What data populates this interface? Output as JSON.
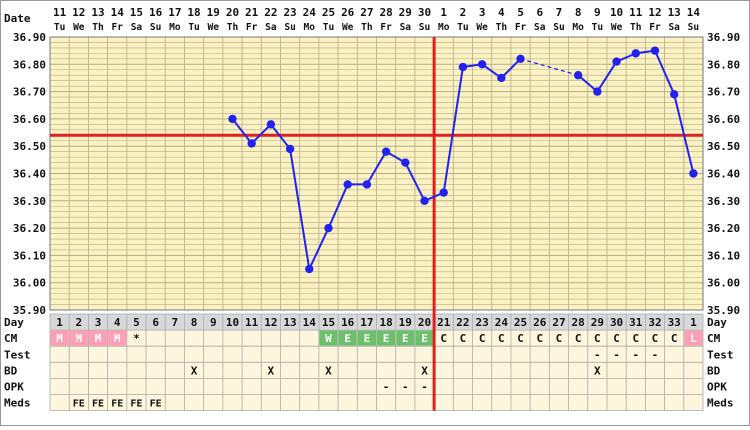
{
  "chart_data": {
    "type": "line",
    "title": "",
    "row_labels": {
      "date": "Date",
      "day": "Day",
      "cm": "CM",
      "test": "Test",
      "bd": "BD",
      "opk": "OPK",
      "meds": "Meds"
    },
    "ylim": [
      35.9,
      36.9
    ],
    "y_ticks": [
      "36.90",
      "36.80",
      "36.70",
      "36.60",
      "36.50",
      "36.40",
      "36.30",
      "36.20",
      "36.10",
      "36.00",
      "35.90"
    ],
    "dates": [
      "11",
      "12",
      "13",
      "14",
      "15",
      "16",
      "17",
      "18",
      "19",
      "20",
      "21",
      "22",
      "23",
      "24",
      "25",
      "26",
      "27",
      "28",
      "29",
      "30",
      "1",
      "2",
      "3",
      "4",
      "5",
      "6",
      "7",
      "8",
      "9",
      "10",
      "11",
      "12",
      "13",
      "14"
    ],
    "weekdays": [
      "Tu",
      "We",
      "Th",
      "Fr",
      "Sa",
      "Su",
      "Mo",
      "Tu",
      "We",
      "Th",
      "Fr",
      "Sa",
      "Su",
      "Mo",
      "Tu",
      "We",
      "Th",
      "Fr",
      "Sa",
      "Su",
      "Mo",
      "Tu",
      "We",
      "Th",
      "Fr",
      "Sa",
      "Su",
      "Mo",
      "Tu",
      "We",
      "Th",
      "Fr",
      "Sa",
      "Su"
    ],
    "cycle_days": [
      "1",
      "2",
      "3",
      "4",
      "5",
      "6",
      "7",
      "8",
      "9",
      "10",
      "11",
      "12",
      "13",
      "14",
      "15",
      "16",
      "17",
      "18",
      "19",
      "20",
      "21",
      "22",
      "23",
      "24",
      "25",
      "26",
      "27",
      "28",
      "29",
      "30",
      "31",
      "32",
      "33",
      "1"
    ],
    "temperatures": [
      null,
      null,
      null,
      null,
      null,
      null,
      null,
      null,
      null,
      36.6,
      36.51,
      36.58,
      36.49,
      36.05,
      36.2,
      36.36,
      36.36,
      36.48,
      36.44,
      36.3,
      36.33,
      36.79,
      36.8,
      36.75,
      36.82,
      null,
      null,
      36.76,
      36.7,
      36.81,
      36.84,
      36.85,
      36.69,
      36.4
    ],
    "coverline": 36.54,
    "ovulation_day_index": 20,
    "series": [
      {
        "name": "",
        "color": "#2222ee"
      }
    ],
    "cm": [
      "M",
      "M",
      "M",
      "M",
      "*",
      "",
      "",
      "",
      "",
      "",
      "",
      "",
      "",
      "",
      "W",
      "E",
      "E",
      "E",
      "E",
      "E",
      "C",
      "C",
      "C",
      "C",
      "C",
      "C",
      "C",
      "C",
      "C",
      "C",
      "C",
      "C",
      "C",
      "L"
    ],
    "cm_colors": {
      "M": "#ff9eb4",
      "W": "#6cc06c",
      "E": "#6cc06c",
      "L": "#ff9eb4"
    },
    "test": [
      "",
      "",
      "",
      "",
      "",
      "",
      "",
      "",
      "",
      "",
      "",
      "",
      "",
      "",
      "",
      "",
      "",
      "",
      "",
      "",
      "",
      "",
      "",
      "",
      "",
      "",
      "",
      "",
      "-",
      "-",
      "-",
      "-",
      "",
      ""
    ],
    "bd": [
      "",
      "",
      "",
      "",
      "",
      "",
      "",
      "X",
      "",
      "",
      "",
      "X",
      "",
      "",
      "X",
      "",
      "",
      "",
      "",
      "X",
      "",
      "",
      "",
      "",
      "",
      "",
      "",
      "",
      "X",
      "",
      "",
      "",
      "",
      ""
    ],
    "opk": [
      "",
      "",
      "",
      "",
      "",
      "",
      "",
      "",
      "",
      "",
      "",
      "",
      "",
      "",
      "",
      "",
      "",
      "-",
      "-",
      "-",
      "",
      "",
      "",
      "",
      "",
      "",
      "",
      "",
      "",
      "",
      "",
      "",
      "",
      ""
    ],
    "meds": [
      "",
      "FE",
      "FE",
      "FE",
      "FE",
      "FE",
      "",
      "",
      "",
      "",
      "",
      "",
      "",
      "",
      "",
      "",
      "",
      "",
      "",
      "",
      "",
      "",
      "",
      "",
      "",
      "",
      "",
      "",
      "",
      "",
      "",
      "",
      "",
      ""
    ],
    "colors": {
      "grid_bg": "#fbf2c4",
      "grid_line": "#b5ac85",
      "coverline": "#e02020",
      "line": "#2222ee"
    }
  }
}
